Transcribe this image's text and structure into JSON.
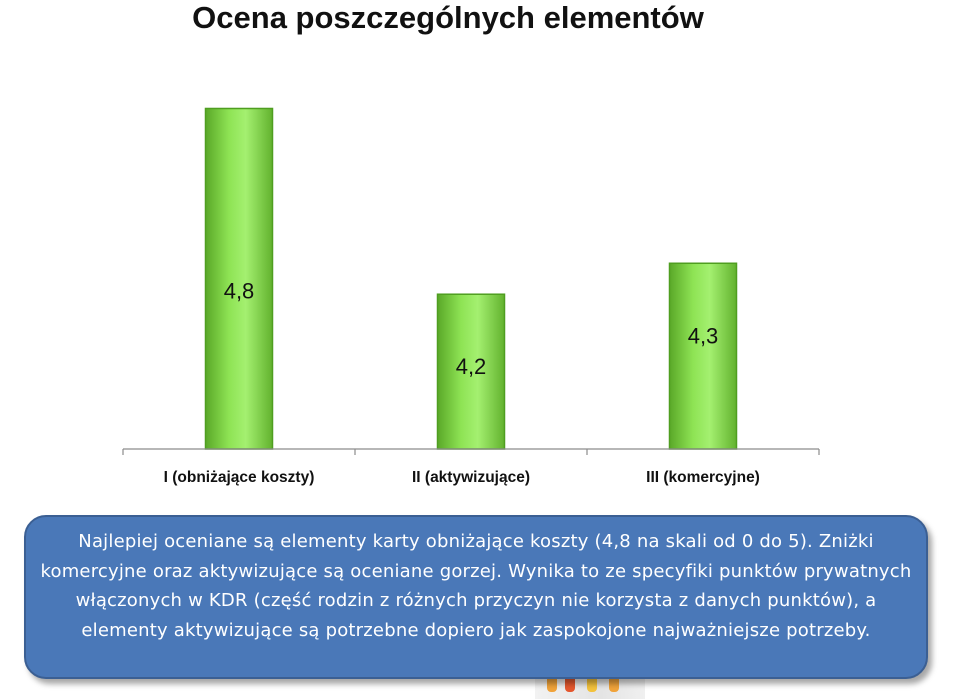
{
  "title": "Ocena poszczególnych elementów",
  "chart_data": {
    "type": "bar",
    "categories": [
      "I (obniżające koszty)",
      "II (aktywizujące)",
      "III (komercyjne)"
    ],
    "values": [
      4.8,
      4.2,
      4.3
    ],
    "value_labels": [
      "4,8",
      "4,2",
      "4,3"
    ],
    "title": "Ocena poszczególnych elementów",
    "xlabel": "",
    "ylabel": "",
    "ylim": [
      3.7,
      4.85
    ],
    "grid": false,
    "legend": "none",
    "colors": {
      "bar_light": "#9ef06c",
      "bar_mid": "#86dc48",
      "bar_dark": "#4f9e20",
      "axis": "#8c8c8c"
    }
  },
  "info_text": "Najlepiej oceniane są elementy karty obniżające koszty (4,8 na skali od 0 do 5). Zniżki komercyjne oraz aktywizujące są oceniane gorzej. Wynika to ze specyfiki punktów prywatnych włączonych w KDR (część rodzin z różnych przyczyn nie korzysta z danych punktów), a elementy aktywizujące są potrzebne dopiero jak zaspokojone najważniejsze potrzeby.",
  "colors": {
    "box_fill": "#4a78b8",
    "box_border": "#3b5f93",
    "box_text": "#ffffff"
  }
}
